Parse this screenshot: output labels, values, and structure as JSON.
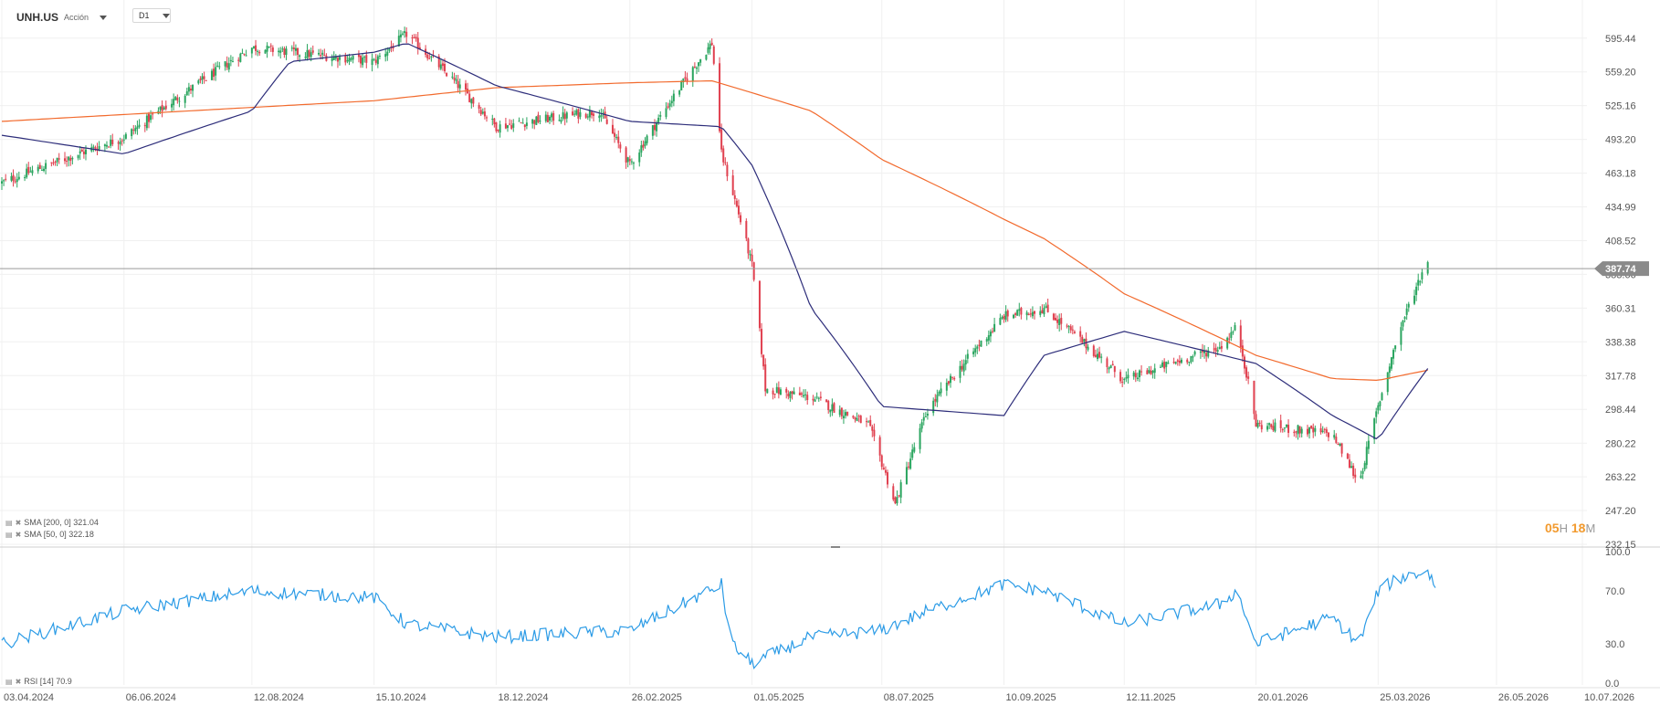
{
  "header": {
    "symbol": "UNH.US",
    "instrument_type": "Acción",
    "timeframe": "D1"
  },
  "legend": {
    "sma200": "SMA [200, 0] 321.04",
    "sma50": "SMA [50, 0] 322.18"
  },
  "timer": {
    "hours": "05",
    "h_unit": "H",
    "minutes": "18",
    "m_unit": "M"
  },
  "current_price": "387.74",
  "colors": {
    "up": "#2aa55f",
    "down": "#e0404f",
    "sma200": "#f26a2d",
    "sma50": "#2d2d7a",
    "rsi": "#2b9be6",
    "price_line": "#9a9a9a",
    "price_label_bg": "#8a8a8a"
  },
  "chart_data": [
    {
      "type": "candlestick",
      "symbol": "UNH.US",
      "timeframe": "D1",
      "price_axis_ticks": [
        "595.44",
        "559.20",
        "525.16",
        "493.20",
        "463.18",
        "434.99",
        "408.52",
        "383.66",
        "360.31",
        "338.38",
        "317.78",
        "298.44",
        "280.22",
        "263.22",
        "247.20",
        "232.15"
      ],
      "x_tick_labels": [
        "03.04.2024",
        "06.06.2024",
        "12.08.2024",
        "15.10.2024",
        "18.12.2024",
        "26.02.2025",
        "01.05.2025",
        "08.07.2025",
        "10.09.2025",
        "12.11.2025",
        "20.01.2026",
        "25.03.2026",
        "26.05.2026",
        "10.07.2026"
      ],
      "y_range": [
        232.15,
        620
      ],
      "log_scale": true,
      "current_price": 387.74,
      "close_path": [
        [
          "03.04.2024",
          455
        ],
        [
          "06.06.2024",
          495
        ],
        [
          "12.08.2024",
          585
        ],
        [
          "15.10.2024",
          570
        ],
        [
          "01.11.2024",
          600
        ],
        [
          "18.12.2024",
          505
        ],
        [
          "10.02.2025",
          520
        ],
        [
          "26.02.2025",
          470
        ],
        [
          "10.04.2025",
          590
        ],
        [
          "15.04.2025",
          480
        ],
        [
          "01.05.2025",
          390
        ],
        [
          "08.05.2025",
          310
        ],
        [
          "01.06.2025",
          305
        ],
        [
          "01.07.2025",
          290
        ],
        [
          "08.07.2025",
          270
        ],
        [
          "15.07.2025",
          250
        ],
        [
          "01.08.2025",
          298
        ],
        [
          "10.09.2025",
          355
        ],
        [
          "01.10.2025",
          360
        ],
        [
          "12.11.2025",
          315
        ],
        [
          "01.01.2026",
          335
        ],
        [
          "10.01.2026",
          348
        ],
        [
          "20.01.2026",
          290
        ],
        [
          "01.03.2026",
          285
        ],
        [
          "15.03.2026",
          260
        ],
        [
          "25.03.2026",
          300
        ],
        [
          "05.04.2026",
          345
        ],
        [
          "20.04.2026",
          395
        ]
      ],
      "series": [
        {
          "name": "SMA [200, 0] 321.04",
          "points": [
            [
              "03.04.2024",
              510
            ],
            [
              "15.10.2024",
              530
            ],
            [
              "18.12.2024",
              543
            ],
            [
              "26.02.2025",
              548
            ],
            [
              "10.04.2025",
              550
            ],
            [
              "01.06.2025",
              520
            ],
            [
              "08.07.2025",
              475
            ],
            [
              "10.09.2025",
              425
            ],
            [
              "01.10.2025",
              410
            ],
            [
              "12.11.2025",
              370
            ],
            [
              "20.01.2026",
              330
            ],
            [
              "01.03.2026",
              316
            ],
            [
              "25.03.2026",
              315
            ],
            [
              "20.04.2026",
              321
            ]
          ]
        },
        {
          "name": "SMA [50, 0] 322.18",
          "points": [
            [
              "03.04.2024",
              497
            ],
            [
              "06.06.2024",
              480
            ],
            [
              "12.08.2024",
              520
            ],
            [
              "01.09.2024",
              570
            ],
            [
              "15.10.2024",
              580
            ],
            [
              "01.11.2024",
              590
            ],
            [
              "18.12.2024",
              545
            ],
            [
              "26.02.2025",
              510
            ],
            [
              "15.04.2025",
              505
            ],
            [
              "01.05.2025",
              470
            ],
            [
              "01.06.2025",
              360
            ],
            [
              "08.07.2025",
              300
            ],
            [
              "10.09.2025",
              295
            ],
            [
              "01.10.2025",
              330
            ],
            [
              "12.11.2025",
              345
            ],
            [
              "20.01.2026",
              325
            ],
            [
              "01.03.2026",
              295
            ],
            [
              "25.03.2026",
              282
            ],
            [
              "20.04.2026",
              322
            ]
          ]
        }
      ]
    },
    {
      "type": "line",
      "indicator": "RSI [14] 70.9",
      "y_ticks": [
        "100.0",
        "70.0",
        "30.0",
        "0.0"
      ],
      "ylim": [
        0,
        100
      ],
      "key_points": [
        [
          "03.04.2024",
          30
        ],
        [
          "06.06.2024",
          55
        ],
        [
          "12.08.2024",
          70
        ],
        [
          "15.10.2024",
          65
        ],
        [
          "01.11.2024",
          45
        ],
        [
          "18.12.2024",
          35
        ],
        [
          "26.02.2025",
          40
        ],
        [
          "15.04.2025",
          75
        ],
        [
          "20.04.2025",
          30
        ],
        [
          "01.05.2025",
          15
        ],
        [
          "01.06.2025",
          35
        ],
        [
          "08.07.2025",
          40
        ],
        [
          "01.08.2025",
          55
        ],
        [
          "10.09.2025",
          75
        ],
        [
          "01.10.2025",
          70
        ],
        [
          "12.11.2025",
          45
        ],
        [
          "01.01.2026",
          60
        ],
        [
          "10.01.2026",
          70
        ],
        [
          "20.01.2026",
          30
        ],
        [
          "01.03.2026",
          50
        ],
        [
          "15.03.2026",
          30
        ],
        [
          "25.03.2026",
          70
        ],
        [
          "05.04.2026",
          80
        ],
        [
          "20.04.2026",
          85
        ],
        [
          "25.04.2026",
          71
        ]
      ],
      "series": [
        {
          "name": "RSI [14] 70.9"
        }
      ]
    }
  ]
}
